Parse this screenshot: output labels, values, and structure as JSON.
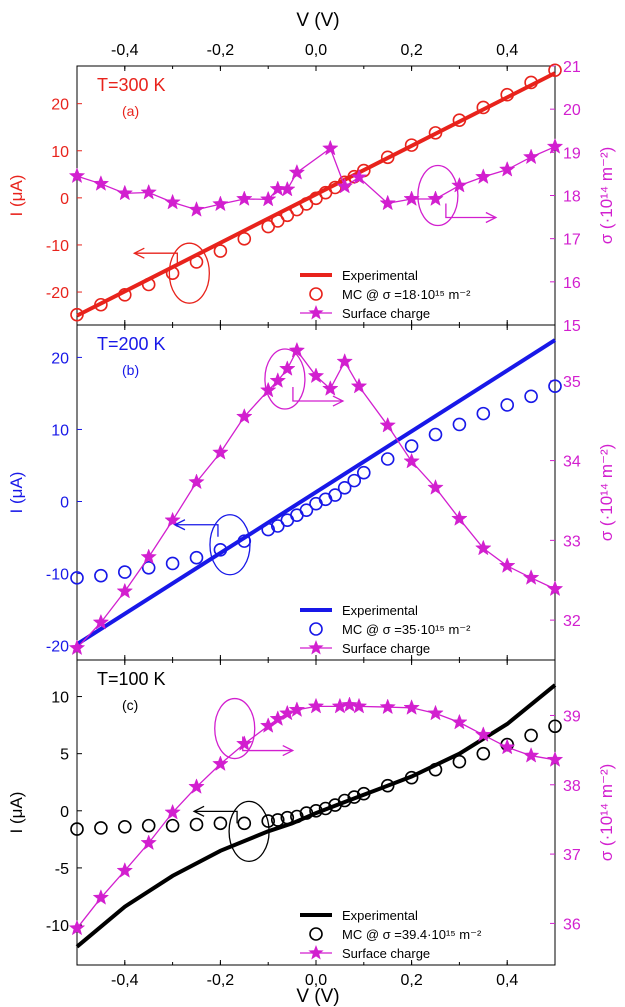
{
  "figure": {
    "top_axis_label": "V (V)",
    "bottom_axis_label": "V (V)",
    "x_ticks": [
      -0.4,
      -0.2,
      0.0,
      0.2,
      0.4
    ],
    "x_tick_labels": [
      "-0,4",
      "-0,2",
      "0,0",
      "0,2",
      "0,4"
    ]
  },
  "chart_data": [
    {
      "type": "line",
      "panel_label": "T=300 K",
      "panel_tag": "(a)",
      "color": "#e8231c",
      "sigma_color": "#d21fcf",
      "xlim": [
        -0.5,
        0.5
      ],
      "ylabel_left": "I (μA)",
      "ylim_left": [
        -27,
        28
      ],
      "yticks_left": [
        -20,
        -10,
        0,
        10,
        20
      ],
      "ylabel_right": "σ (·10¹⁴ m⁻²)",
      "ylim_right": [
        15.0,
        21.0
      ],
      "yticks_right": [
        16,
        17,
        18,
        19,
        20,
        21
      ],
      "yticks_right_extra": [
        15
      ],
      "legend": [
        "Experimental",
        "MC @ σ =18·10¹⁵ m⁻²",
        "Surface charge"
      ],
      "series": [
        {
          "name": "Experimental",
          "axis": "left",
          "style": "line",
          "x": [
            -0.5,
            0.5
          ],
          "y": [
            -25.0,
            26.5
          ]
        },
        {
          "name": "MC @ σ =18·10¹⁵ m⁻²",
          "axis": "left",
          "style": "circles",
          "x": [
            -0.5,
            -0.45,
            -0.4,
            -0.35,
            -0.3,
            -0.25,
            -0.2,
            -0.15,
            -0.1,
            -0.08,
            -0.06,
            -0.04,
            -0.02,
            0.0,
            0.02,
            0.04,
            0.06,
            0.08,
            0.1,
            0.15,
            0.2,
            0.25,
            0.3,
            0.35,
            0.4,
            0.45,
            0.5
          ],
          "y": [
            -24.8,
            -22.7,
            -20.6,
            -18.4,
            -16.0,
            -13.6,
            -11.3,
            -8.7,
            -6.1,
            -4.9,
            -3.7,
            -2.5,
            -1.3,
            -0.1,
            1.1,
            2.2,
            3.3,
            4.5,
            5.8,
            8.6,
            11.2,
            13.8,
            16.5,
            19.2,
            21.9,
            24.5,
            27.1
          ]
        },
        {
          "name": "Surface charge",
          "axis": "right",
          "style": "stars",
          "x": [
            -0.5,
            -0.45,
            -0.4,
            -0.35,
            -0.3,
            -0.25,
            -0.2,
            -0.15,
            -0.1,
            -0.08,
            -0.06,
            -0.04,
            0.03,
            0.06,
            0.09,
            0.15,
            0.2,
            0.25,
            0.3,
            0.35,
            0.4,
            0.45,
            0.5
          ],
          "y": [
            18.45,
            18.27,
            18.05,
            18.07,
            17.84,
            17.67,
            17.8,
            17.92,
            17.91,
            18.15,
            18.14,
            18.53,
            19.09,
            18.21,
            18.42,
            17.82,
            17.92,
            17.92,
            18.23,
            18.43,
            18.6,
            18.89,
            19.13
          ]
        }
      ],
      "annotations": [
        {
          "type": "ellipse",
          "x": -0.265,
          "y": -16.0,
          "axis": "left",
          "arrow": "left"
        },
        {
          "type": "ellipse",
          "x": 0.255,
          "y": 0.5,
          "axis": "left",
          "arrow": "right"
        }
      ]
    },
    {
      "type": "line",
      "panel_label": "T=200 K",
      "panel_tag": "(b)",
      "color": "#1818e8",
      "sigma_color": "#d21fcf",
      "xlim": [
        -0.5,
        0.5
      ],
      "ylabel_left": "I (μA)",
      "ylim_left": [
        -22,
        24.5
      ],
      "yticks_left": [
        -20,
        -10,
        0,
        10,
        20
      ],
      "ylabel_right": "σ (·10¹⁴ m⁻²)",
      "ylim_right": [
        31.5,
        35.7
      ],
      "yticks_right": [
        32,
        33,
        34,
        35
      ],
      "legend": [
        "Experimental",
        "MC @ σ =35·10¹⁵ m⁻²",
        "Surface charge"
      ],
      "series": [
        {
          "name": "Experimental",
          "axis": "left",
          "style": "line",
          "x": [
            -0.5,
            0.5
          ],
          "y": [
            -19.8,
            22.4
          ]
        },
        {
          "name": "MC @ σ =35·10¹⁵ m⁻²",
          "axis": "left",
          "style": "circles",
          "x": [
            -0.5,
            -0.45,
            -0.4,
            -0.35,
            -0.3,
            -0.25,
            -0.2,
            -0.15,
            -0.1,
            -0.08,
            -0.06,
            -0.04,
            -0.02,
            0.0,
            0.02,
            0.04,
            0.06,
            0.08,
            0.1,
            0.15,
            0.2,
            0.25,
            0.3,
            0.35,
            0.4,
            0.45,
            0.5
          ],
          "y": [
            -10.6,
            -10.3,
            -9.8,
            -9.2,
            -8.6,
            -7.8,
            -6.7,
            -5.5,
            -3.9,
            -3.4,
            -2.6,
            -1.9,
            -1.2,
            -0.3,
            0.3,
            0.9,
            1.9,
            2.9,
            4.0,
            5.9,
            7.7,
            9.3,
            10.7,
            12.2,
            13.4,
            14.6,
            16.0
          ]
        },
        {
          "name": "Surface charge",
          "axis": "right",
          "style": "stars",
          "x": [
            -0.5,
            -0.45,
            -0.4,
            -0.35,
            -0.3,
            -0.25,
            -0.2,
            -0.15,
            -0.1,
            -0.08,
            -0.06,
            -0.04,
            0.0,
            0.03,
            0.06,
            0.09,
            0.15,
            0.2,
            0.25,
            0.3,
            0.35,
            0.4,
            0.45,
            0.5
          ],
          "y": [
            31.65,
            31.97,
            32.36,
            32.79,
            33.25,
            33.73,
            34.1,
            34.55,
            34.88,
            35.0,
            35.15,
            35.38,
            35.06,
            34.9,
            35.24,
            34.93,
            34.44,
            33.99,
            33.66,
            33.27,
            32.9,
            32.68,
            32.53,
            32.39
          ]
        }
      ],
      "annotations": [
        {
          "type": "ellipse",
          "x": -0.18,
          "y": -6.0,
          "axis": "left",
          "arrow": "left"
        },
        {
          "type": "ellipse",
          "x": -0.065,
          "y": 17.0,
          "axis": "left",
          "arrow": "right"
        }
      ]
    },
    {
      "type": "line",
      "panel_label": "T=100 K",
      "panel_tag": "(c)",
      "color": "#000000",
      "sigma_color": "#d21fcf",
      "xlim": [
        -0.5,
        0.5
      ],
      "ylabel_left": "I (μA)",
      "ylim_left": [
        -13.5,
        13.2
      ],
      "yticks_left": [
        -10,
        -5,
        0,
        5,
        10
      ],
      "ylabel_right": "σ (·10¹⁴ m⁻²)",
      "ylim_right": [
        35.4,
        39.8
      ],
      "yticks_right": [
        36,
        37,
        38,
        39
      ],
      "legend": [
        "Experimental",
        "MC @ σ =39.4·10¹⁵ m⁻²",
        "Surface charge"
      ],
      "series": [
        {
          "name": "Experimental",
          "axis": "left",
          "style": "line",
          "x": [
            -0.5,
            -0.4,
            -0.3,
            -0.2,
            -0.1,
            -0.05,
            0.0,
            0.05,
            0.1,
            0.2,
            0.3,
            0.4,
            0.5
          ],
          "y": [
            -11.9,
            -8.4,
            -5.7,
            -3.5,
            -1.8,
            -1.1,
            -0.2,
            0.6,
            1.4,
            3.0,
            5.0,
            7.6,
            11.0
          ]
        },
        {
          "name": "MC @ σ =39.4·10¹⁵ m⁻²",
          "axis": "left",
          "style": "circles",
          "x": [
            -0.5,
            -0.45,
            -0.4,
            -0.35,
            -0.3,
            -0.25,
            -0.2,
            -0.15,
            -0.1,
            -0.08,
            -0.06,
            -0.04,
            -0.02,
            0.0,
            0.02,
            0.04,
            0.06,
            0.08,
            0.1,
            0.15,
            0.2,
            0.25,
            0.3,
            0.35,
            0.4,
            0.45,
            0.5
          ],
          "y": [
            -1.6,
            -1.5,
            -1.4,
            -1.3,
            -1.3,
            -1.2,
            -1.1,
            -1.1,
            -0.9,
            -0.8,
            -0.6,
            -0.5,
            -0.2,
            0.0,
            0.2,
            0.5,
            0.9,
            1.2,
            1.5,
            2.2,
            2.9,
            3.6,
            4.3,
            5.0,
            5.8,
            6.6,
            7.4
          ]
        },
        {
          "name": "Surface charge",
          "axis": "right",
          "style": "stars",
          "x": [
            -0.5,
            -0.45,
            -0.4,
            -0.35,
            -0.3,
            -0.25,
            -0.2,
            -0.15,
            -0.1,
            -0.08,
            -0.06,
            -0.04,
            0.0,
            0.05,
            0.07,
            0.09,
            0.15,
            0.2,
            0.25,
            0.3,
            0.35,
            0.4,
            0.45,
            0.5
          ],
          "y": [
            35.93,
            36.37,
            36.76,
            37.16,
            37.6,
            37.97,
            38.3,
            38.59,
            38.85,
            38.95,
            39.03,
            39.08,
            39.13,
            39.13,
            39.15,
            39.13,
            39.12,
            39.11,
            39.03,
            38.9,
            38.72,
            38.54,
            38.42,
            38.36
          ]
        }
      ],
      "annotations": [
        {
          "type": "ellipse",
          "x": -0.14,
          "y": -1.8,
          "axis": "left",
          "arrow": "left"
        },
        {
          "type": "ellipse",
          "x": -0.17,
          "y": 7.2,
          "axis": "left",
          "arrow": "right"
        }
      ]
    }
  ]
}
